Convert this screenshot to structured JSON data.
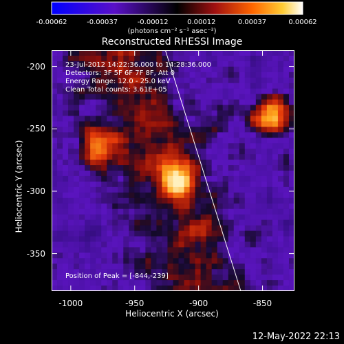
{
  "chart_data": {
    "type": "heatmap",
    "title": "Reconstructed RHESSI Image",
    "xlabel": "Heliocentric X (arcsec)",
    "ylabel": "Heliocentric Y (arcsec)",
    "xlim": [
      -1015,
      -825
    ],
    "ylim": [
      -380,
      -187
    ],
    "x_ticks": [
      "-1000",
      "-950",
      "-900",
      "-850"
    ],
    "x_tick_values": [
      -1000,
      -950,
      -900,
      -850
    ],
    "y_ticks": [
      "-200",
      "-250",
      "-300",
      "-350"
    ],
    "y_tick_values": [
      -200,
      -250,
      -300,
      -350
    ],
    "colorbar": {
      "ticks": [
        "-0.00062",
        "-0.00037",
        "-0.00012",
        "0.00012",
        "0.00037",
        "0.00062"
      ],
      "tick_values": [
        -0.00062,
        -0.00037,
        -0.00012,
        0.00012,
        0.00037,
        0.00062
      ],
      "units": "(photons cm⁻² s⁻¹ asec⁻²)",
      "colors": [
        "#0000ff",
        "#5a10c8",
        "#000000",
        "#a01010",
        "#ff6600",
        "#ffcc33",
        "#ffffff"
      ]
    },
    "annotations": [
      "23-Jul-2012 14:22:36.000 to 14:28:36.000",
      "Detectors: 3F 5F 6F 7F 8F, Att 0",
      "Energy Range: 12.0 - 25.0 keV",
      "Clean     Total counts: 3.61E+05"
    ],
    "peak_label": "Position of Peak = [-844,-239]",
    "peak": [
      -844,
      -239
    ],
    "limb_line": [
      [
        -926,
        -187
      ],
      [
        -867,
        -380
      ]
    ],
    "bright_sources": [
      {
        "x": -844,
        "y": -239,
        "intensity": 1.0
      },
      {
        "x": -978,
        "y": -265,
        "intensity": 0.85
      },
      {
        "x": -918,
        "y": -290,
        "intensity": 0.8
      }
    ]
  },
  "datestamp": "12-May-2022 22:13"
}
